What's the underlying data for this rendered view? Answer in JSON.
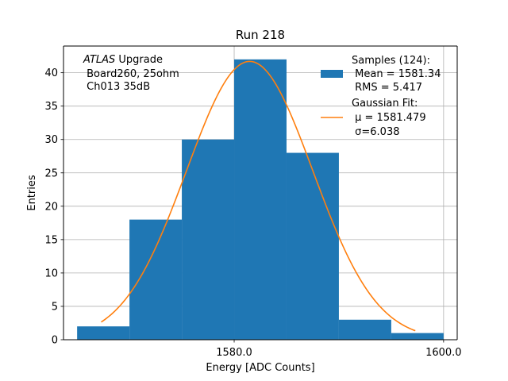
{
  "chart_data": {
    "type": "bar",
    "title": "Run 218",
    "xlabel": "Energy [ADC Counts]",
    "ylabel": "Entries",
    "xlim": [
      1563.7,
      1601.3
    ],
    "ylim": [
      0,
      44
    ],
    "grid": true,
    "x_ticks": [
      {
        "value": 1580,
        "label": "1580.0"
      },
      {
        "value": 1600,
        "label": "1600.0"
      }
    ],
    "y_ticks": [
      {
        "value": 0,
        "label": "0"
      },
      {
        "value": 5,
        "label": "5"
      },
      {
        "value": 10,
        "label": "10"
      },
      {
        "value": 15,
        "label": "15"
      },
      {
        "value": 20,
        "label": "20"
      },
      {
        "value": 25,
        "label": "25"
      },
      {
        "value": 30,
        "label": "30"
      },
      {
        "value": 35,
        "label": "35"
      },
      {
        "value": 40,
        "label": "40"
      }
    ],
    "histogram": {
      "name": "Samples (124)",
      "color": "#1f77b4",
      "bins": [
        {
          "x0": 1565,
          "x1": 1570,
          "count": 2
        },
        {
          "x0": 1570,
          "x1": 1575,
          "count": 18
        },
        {
          "x0": 1575,
          "x1": 1580,
          "count": 30
        },
        {
          "x0": 1580,
          "x1": 1585,
          "count": 42
        },
        {
          "x0": 1585,
          "x1": 1590,
          "count": 28
        },
        {
          "x0": 1590,
          "x1": 1595,
          "count": 3
        },
        {
          "x0": 1595,
          "x1": 1600,
          "count": 1
        }
      ]
    },
    "gaussian_fit": {
      "name": "Gaussian Fit",
      "color": "#ff7f0e",
      "mu": 1581.479,
      "sigma": 6.038,
      "amplitude": 41.7,
      "x_range": [
        1567.3,
        1597.3
      ]
    },
    "annotation": {
      "line1_italic": "ATLAS",
      "line1_rest": " Upgrade",
      "line2": " Board260, 25ohm",
      "line3": " Ch013 35dB"
    },
    "legend": {
      "position": "top-right",
      "samples": {
        "line1": "Samples (124):",
        "line2": " Mean = 1581.34",
        "line3": " RMS = 5.417"
      },
      "fit": {
        "line1": "Gaussian Fit:",
        "line2": " μ = 1581.479",
        "line3": " σ=6.038"
      }
    }
  }
}
